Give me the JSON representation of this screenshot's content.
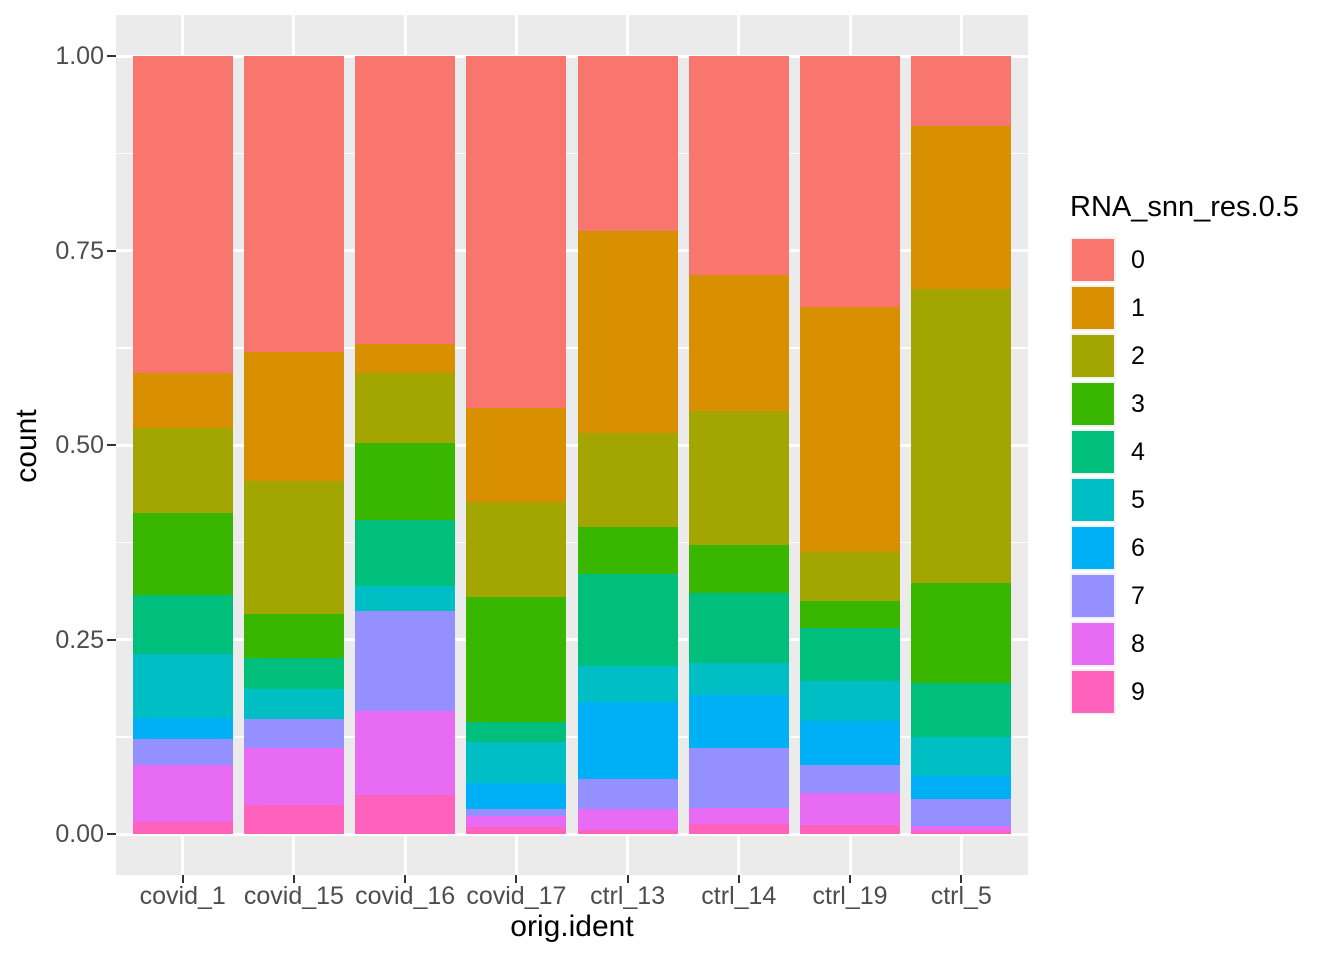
{
  "axes": {
    "x": {
      "title": "orig.ident"
    },
    "y": {
      "title": "count"
    }
  },
  "chart_data": {
    "type": "bar",
    "stacked": true,
    "normalized": true,
    "title": "",
    "xlabel": "orig.ident",
    "ylabel": "count",
    "legend_title": "RNA_snn_res.0.5",
    "legend_position": "right",
    "grid": "on",
    "panel_bg": "#EBEBEB",
    "grid_color": "#FFFFFF",
    "tick_color": "#333333",
    "tick_label_color": "#4D4D4D",
    "ylim": [
      0,
      1
    ],
    "y_ticks": [
      0,
      0.25,
      0.5,
      0.75,
      1
    ],
    "y_tick_labels": [
      "0.00",
      "0.25",
      "0.50",
      "0.75",
      "1.00"
    ],
    "y_minor_ticks": [
      0.125,
      0.375,
      0.625,
      0.875
    ],
    "categories": [
      "covid_1",
      "covid_15",
      "covid_16",
      "covid_17",
      "ctrl_13",
      "ctrl_14",
      "ctrl_19",
      "ctrl_5"
    ],
    "series": [
      {
        "name": "0",
        "color": "#F8766D",
        "values": [
          0.407,
          0.38,
          0.37,
          0.453,
          0.225,
          0.282,
          0.323,
          0.09
        ]
      },
      {
        "name": "1",
        "color": "#D89000",
        "values": [
          0.071,
          0.166,
          0.038,
          0.12,
          0.26,
          0.174,
          0.314,
          0.209
        ]
      },
      {
        "name": "2",
        "color": "#A3A500",
        "values": [
          0.11,
          0.171,
          0.09,
          0.122,
          0.12,
          0.172,
          0.064,
          0.378
        ]
      },
      {
        "name": "3",
        "color": "#39B600",
        "values": [
          0.105,
          0.057,
          0.099,
          0.161,
          0.061,
          0.062,
          0.034,
          0.129
        ]
      },
      {
        "name": "4",
        "color": "#00BF7D",
        "values": [
          0.076,
          0.039,
          0.084,
          0.026,
          0.118,
          0.09,
          0.068,
          0.069
        ]
      },
      {
        "name": "5",
        "color": "#00BFC4",
        "values": [
          0.082,
          0.039,
          0.033,
          0.053,
          0.046,
          0.041,
          0.052,
          0.05
        ]
      },
      {
        "name": "6",
        "color": "#00B0F6",
        "values": [
          0.027,
          0.0,
          0.0,
          0.033,
          0.099,
          0.068,
          0.056,
          0.03
        ]
      },
      {
        "name": "7",
        "color": "#9590FF",
        "values": [
          0.033,
          0.037,
          0.128,
          0.009,
          0.039,
          0.078,
          0.036,
          0.035
        ]
      },
      {
        "name": "8",
        "color": "#E76BF3",
        "values": [
          0.074,
          0.074,
          0.108,
          0.014,
          0.027,
          0.02,
          0.041,
          0.006
        ]
      },
      {
        "name": "9",
        "color": "#FF62BC",
        "values": [
          0.015,
          0.037,
          0.05,
          0.009,
          0.005,
          0.013,
          0.012,
          0.004
        ]
      }
    ]
  }
}
